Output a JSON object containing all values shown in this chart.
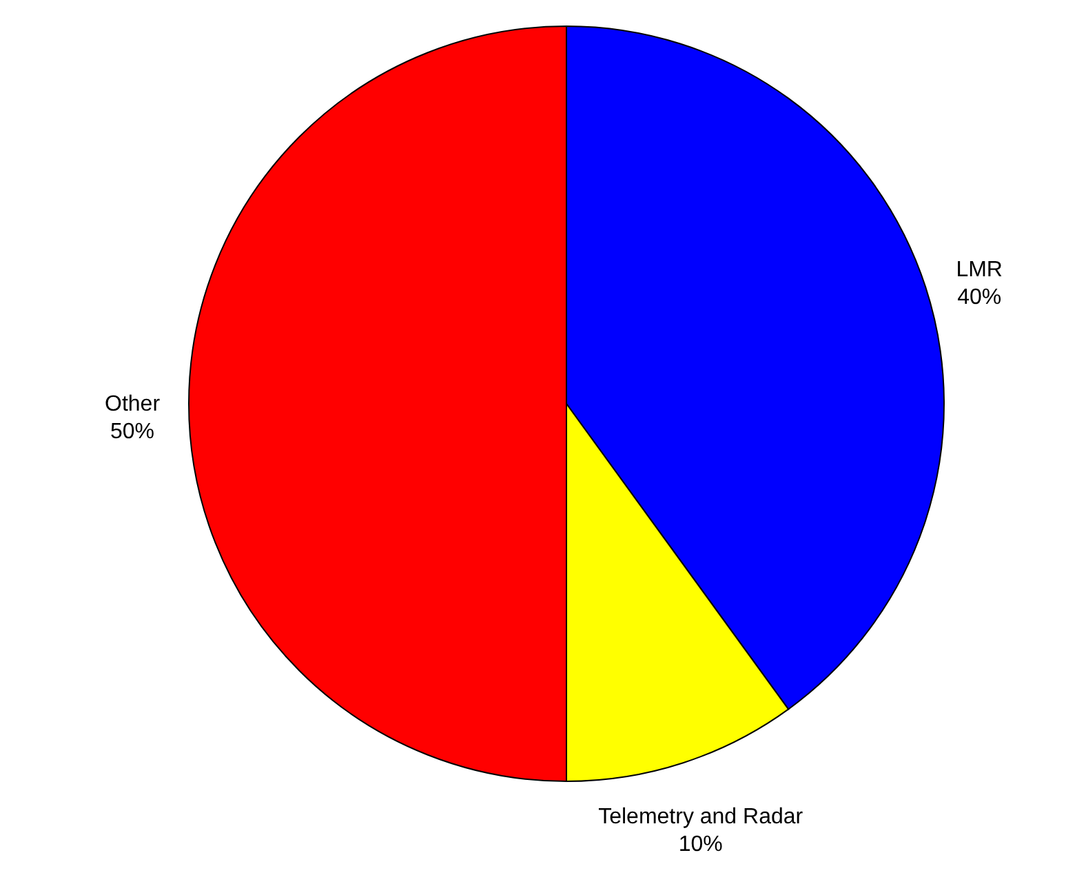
{
  "chart_data": {
    "type": "pie",
    "categories": [
      "LMR",
      "Telemetry and Radar",
      "Other"
    ],
    "values": [
      40,
      10,
      50
    ],
    "colors": [
      "#0000ff",
      "#ffff00",
      "#ff0000"
    ],
    "value_labels": [
      "40%",
      "10%",
      "50%"
    ]
  }
}
